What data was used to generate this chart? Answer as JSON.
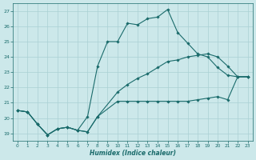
{
  "xlabel": "Humidex (Indice chaleur)",
  "background_color": "#cce8ea",
  "grid_color": "#aad0d4",
  "line_color": "#1a6b6b",
  "xlim": [
    -0.5,
    23.5
  ],
  "ylim": [
    18.5,
    27.5
  ],
  "yticks": [
    19,
    20,
    21,
    22,
    23,
    24,
    25,
    26,
    27
  ],
  "xticks": [
    0,
    1,
    2,
    3,
    4,
    5,
    6,
    7,
    8,
    9,
    10,
    11,
    12,
    13,
    14,
    15,
    16,
    17,
    18,
    19,
    20,
    21,
    22,
    23
  ],
  "line1_x": [
    0,
    1,
    2,
    3,
    4,
    5,
    6,
    7,
    8,
    10,
    11,
    12,
    13,
    14,
    15,
    16,
    17,
    18,
    19,
    20,
    21,
    22,
    23
  ],
  "line1_y": [
    20.5,
    20.4,
    19.6,
    18.9,
    19.3,
    19.4,
    19.2,
    19.1,
    20.1,
    21.1,
    21.1,
    21.1,
    21.1,
    21.1,
    21.1,
    21.1,
    21.1,
    21.2,
    21.3,
    21.4,
    21.2,
    22.7,
    22.7
  ],
  "line2_x": [
    0,
    1,
    2,
    3,
    4,
    5,
    6,
    7,
    8,
    9,
    10,
    11,
    12,
    13,
    14,
    15,
    16,
    17,
    18,
    19,
    20,
    21,
    22,
    23
  ],
  "line2_y": [
    20.5,
    20.4,
    19.6,
    18.9,
    19.3,
    19.4,
    19.2,
    20.1,
    23.4,
    25.0,
    25.0,
    26.2,
    26.1,
    26.5,
    26.6,
    27.1,
    25.6,
    24.9,
    24.2,
    24.0,
    23.3,
    22.8,
    22.7,
    22.7
  ],
  "line3_x": [
    0,
    1,
    2,
    3,
    4,
    5,
    6,
    7,
    8,
    10,
    11,
    12,
    13,
    14,
    15,
    16,
    17,
    18,
    19,
    20,
    21,
    22,
    23
  ],
  "line3_y": [
    20.5,
    20.4,
    19.6,
    18.9,
    19.3,
    19.4,
    19.2,
    19.1,
    20.1,
    21.7,
    22.2,
    22.6,
    22.9,
    23.3,
    23.7,
    23.8,
    24.0,
    24.1,
    24.2,
    24.0,
    23.4,
    22.7,
    22.7
  ],
  "line2_marker_x": [
    0,
    1,
    2,
    3,
    4,
    5,
    6,
    7,
    8,
    9,
    10,
    11,
    12,
    13,
    14,
    15,
    16,
    17,
    18,
    19,
    20,
    21,
    22,
    23
  ],
  "line2_marker_y": [
    20.5,
    20.4,
    19.6,
    18.9,
    19.3,
    19.4,
    19.2,
    20.1,
    23.4,
    25.0,
    25.0,
    26.2,
    26.1,
    26.5,
    26.6,
    27.1,
    25.6,
    24.9,
    24.2,
    24.0,
    23.3,
    22.8,
    22.7,
    22.7
  ]
}
